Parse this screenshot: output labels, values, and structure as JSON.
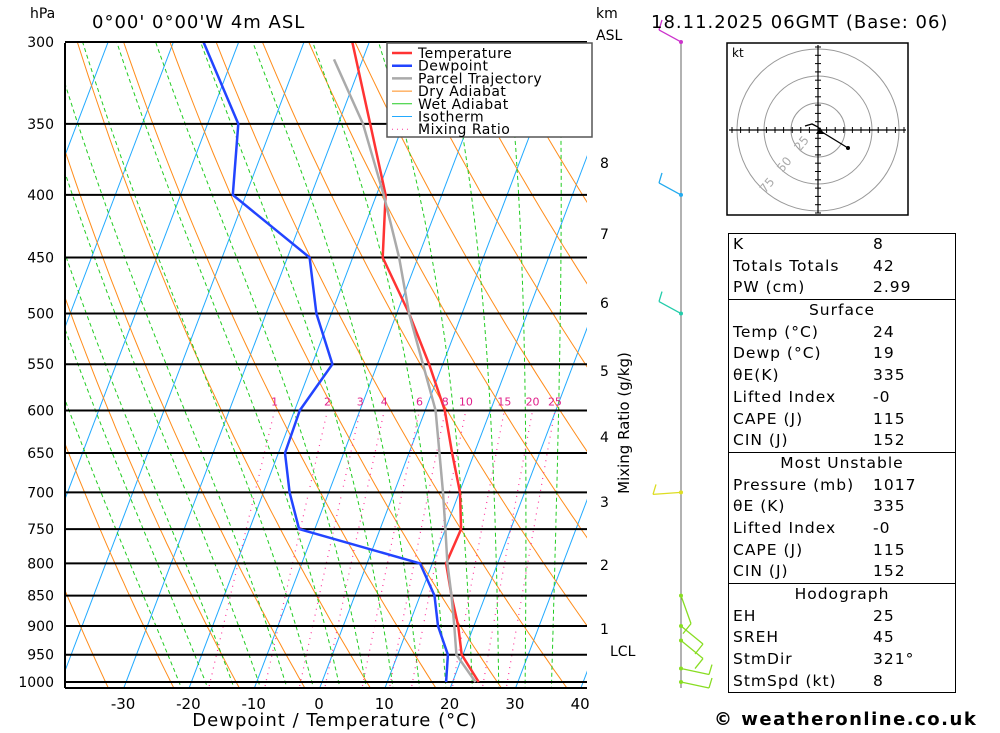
{
  "header": {
    "location": "0°00' 0°00'W 4m ASL",
    "datetime": "18.11.2025 06GMT (Base: 06)",
    "pressure_unit": "hPa",
    "km_unit": "km",
    "km_asl": "ASL"
  },
  "chart_data": {
    "type": "skew-t",
    "xlabel": "Dewpoint / Temperature (°C)",
    "ylabel": "hPa",
    "xlim": [
      -40,
      40
    ],
    "ylim": [
      1000,
      300
    ],
    "x_ticks": [
      "-30",
      "-20",
      "-10",
      "0",
      "10",
      "20",
      "30",
      "40"
    ],
    "pressure_ticks": [
      "300",
      "350",
      "400",
      "450",
      "500",
      "550",
      "600",
      "650",
      "700",
      "750",
      "800",
      "850",
      "900",
      "950",
      "1000"
    ],
    "height_ticks_km": [
      "8",
      "7",
      "6",
      "5",
      "4",
      "3",
      "2",
      "1"
    ],
    "lcl_label": "LCL",
    "mixing_ratio_label": "Mixing Ratio (g/kg)",
    "mixing_ratio_values": [
      "1",
      "2",
      "3",
      "4",
      "6",
      "8",
      "10",
      "15",
      "20",
      "25"
    ],
    "legend": [
      {
        "name": "Temperature",
        "color": "#ff3333",
        "style": "thick"
      },
      {
        "name": "Dewpoint",
        "color": "#2244ff",
        "style": "thick"
      },
      {
        "name": "Parcel Trajectory",
        "color": "#aaaaaa",
        "style": "thick"
      },
      {
        "name": "Dry Adiabat",
        "color": "#ff8c1a",
        "style": "thin"
      },
      {
        "name": "Wet Adiabat",
        "color": "#22cc22",
        "style": "thin"
      },
      {
        "name": "Isotherm",
        "color": "#22aaff",
        "style": "thin"
      },
      {
        "name": "Mixing Ratio",
        "color": "#ff3399",
        "style": "dotted"
      }
    ],
    "series": [
      {
        "name": "Temperature",
        "color": "#ff3333",
        "pressure": [
          1000,
          950,
          900,
          850,
          800,
          750,
          700,
          650,
          600,
          550,
          500,
          450,
          400,
          350,
          300
        ],
        "values": [
          24,
          19.8,
          17.6,
          14.8,
          12.1,
          12.4,
          10.1,
          6.6,
          3.0,
          -2.1,
          -8.1,
          -15.4,
          -18.6,
          -25.1,
          -32.6
        ]
      },
      {
        "name": "Dewpoint",
        "color": "#2244ff",
        "pressure": [
          1000,
          950,
          900,
          850,
          800,
          750,
          700,
          650,
          600,
          550,
          500,
          450,
          400,
          350,
          300
        ],
        "values": [
          19,
          17.7,
          14.5,
          12.2,
          8.1,
          -12.4,
          -16,
          -19,
          -19.2,
          -16.9,
          -22.3,
          -26.6,
          -42,
          -45.3,
          -55.4
        ]
      },
      {
        "name": "Parcel Trajectory",
        "color": "#aaaaaa",
        "pressure": [
          1000,
          950,
          900,
          850,
          800,
          750,
          700,
          600,
          500,
          450,
          400,
          350,
          310
        ],
        "values": [
          23.5,
          19,
          17,
          14.8,
          12.3,
          10,
          7.5,
          1.6,
          -8.1,
          -12.9,
          -18.9,
          -26.2,
          -34.4
        ]
      }
    ],
    "wind_barbs": [
      {
        "pressure": 300,
        "color": "#cc33cc"
      },
      {
        "pressure": 400,
        "color": "#22aaee"
      },
      {
        "pressure": 500,
        "color": "#22ccaa"
      },
      {
        "pressure": 700,
        "color": "#dddd22"
      },
      {
        "pressure": 850,
        "color": "#88dd22"
      },
      {
        "pressure": 900,
        "color": "#88dd22"
      },
      {
        "pressure": 925,
        "color": "#88dd22"
      },
      {
        "pressure": 975,
        "color": "#88dd22"
      },
      {
        "pressure": 1000,
        "color": "#88dd22"
      }
    ]
  },
  "hodograph": {
    "unit": "kt",
    "rings": [
      "25",
      "50",
      "75"
    ]
  },
  "stats": {
    "indices": [
      {
        "label": "K",
        "value": "8"
      },
      {
        "label": "Totals Totals",
        "value": "42"
      },
      {
        "label": "PW (cm)",
        "value": "2.99"
      }
    ],
    "surface": {
      "title": "Surface",
      "rows": [
        {
          "label": "Temp (°C)",
          "value": "24"
        },
        {
          "label": "Dewp (°C)",
          "value": "19"
        },
        {
          "label": "θE(K)",
          "value": "335"
        },
        {
          "label": "Lifted Index",
          "value": "-0"
        },
        {
          "label": "CAPE (J)",
          "value": "115"
        },
        {
          "label": "CIN (J)",
          "value": "152"
        }
      ]
    },
    "most_unstable": {
      "title": "Most Unstable",
      "rows": [
        {
          "label": "Pressure (mb)",
          "value": "1017"
        },
        {
          "label": "θE (K)",
          "value": "335"
        },
        {
          "label": "Lifted Index",
          "value": "-0"
        },
        {
          "label": "CAPE (J)",
          "value": "115"
        },
        {
          "label": "CIN (J)",
          "value": "152"
        }
      ]
    },
    "hodograph": {
      "title": "Hodograph",
      "rows": [
        {
          "label": "EH",
          "value": "25"
        },
        {
          "label": "SREH",
          "value": "45"
        },
        {
          "label": "StmDir",
          "value": "321°"
        },
        {
          "label": "StmSpd (kt)",
          "value": "8"
        }
      ]
    }
  },
  "footer": "© weatheronline.co.uk"
}
